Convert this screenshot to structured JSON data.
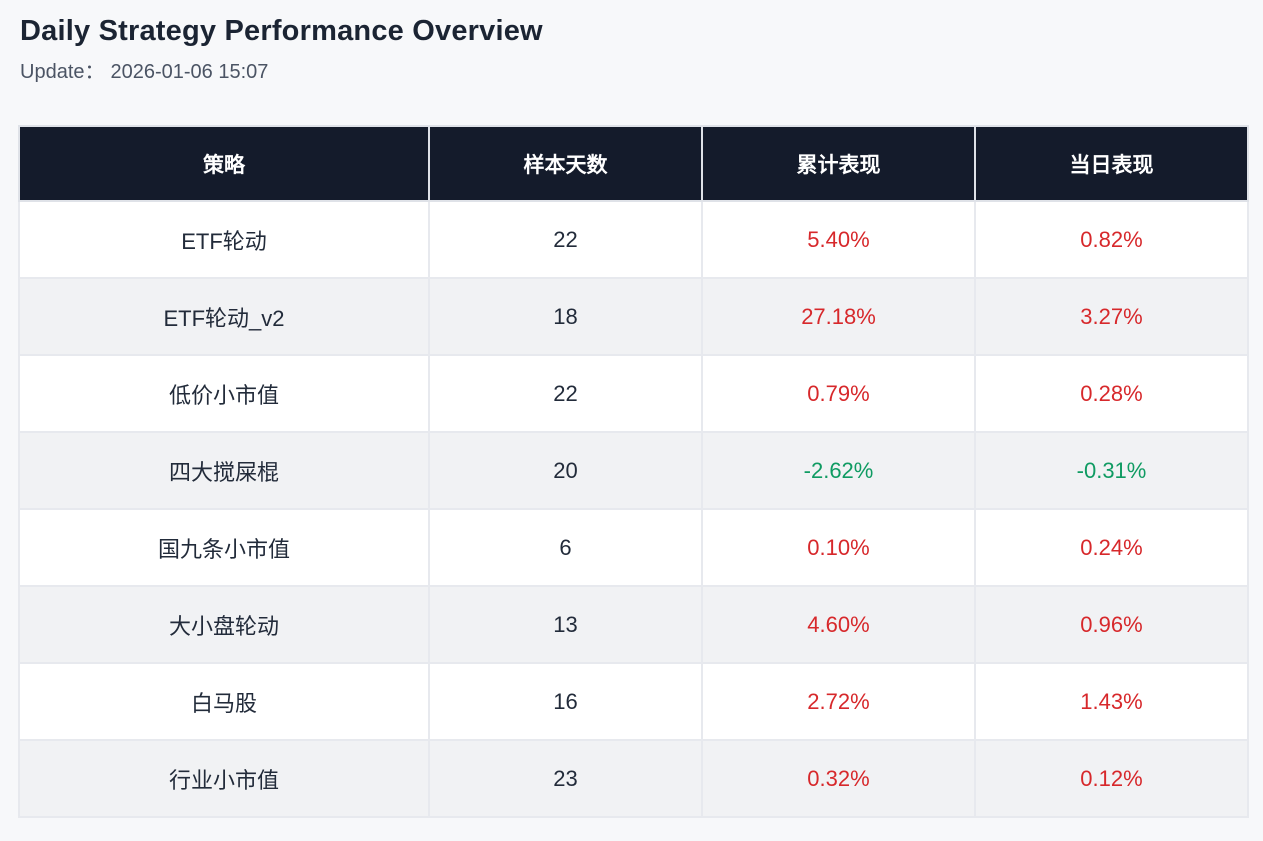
{
  "page": {
    "title": "Daily Strategy Performance Overview",
    "update_label": "Update：",
    "update_time": "2026-01-06 15:07"
  },
  "colors": {
    "up": "#d7282b",
    "down": "#0f9b62",
    "header_bg": "#141b2b"
  },
  "table": {
    "columns": [
      "策略",
      "样本天数",
      "累计表现",
      "当日表现"
    ],
    "rows": [
      {
        "strategy": "ETF轮动",
        "days": "22",
        "cumulative": "5.40%",
        "cumulative_trend": "up",
        "daily": "0.82%",
        "daily_trend": "up"
      },
      {
        "strategy": "ETF轮动_v2",
        "days": "18",
        "cumulative": "27.18%",
        "cumulative_trend": "up",
        "daily": "3.27%",
        "daily_trend": "up"
      },
      {
        "strategy": "低价小市值",
        "days": "22",
        "cumulative": "0.79%",
        "cumulative_trend": "up",
        "daily": "0.28%",
        "daily_trend": "up"
      },
      {
        "strategy": "四大搅屎棍",
        "days": "20",
        "cumulative": "-2.62%",
        "cumulative_trend": "down",
        "daily": "-0.31%",
        "daily_trend": "down"
      },
      {
        "strategy": "国九条小市值",
        "days": "6",
        "cumulative": "0.10%",
        "cumulative_trend": "up",
        "daily": "0.24%",
        "daily_trend": "up"
      },
      {
        "strategy": "大小盘轮动",
        "days": "13",
        "cumulative": "4.60%",
        "cumulative_trend": "up",
        "daily": "0.96%",
        "daily_trend": "up"
      },
      {
        "strategy": "白马股",
        "days": "16",
        "cumulative": "2.72%",
        "cumulative_trend": "up",
        "daily": "1.43%",
        "daily_trend": "up"
      },
      {
        "strategy": "行业小市值",
        "days": "23",
        "cumulative": "0.32%",
        "cumulative_trend": "up",
        "daily": "0.12%",
        "daily_trend": "up"
      }
    ]
  }
}
